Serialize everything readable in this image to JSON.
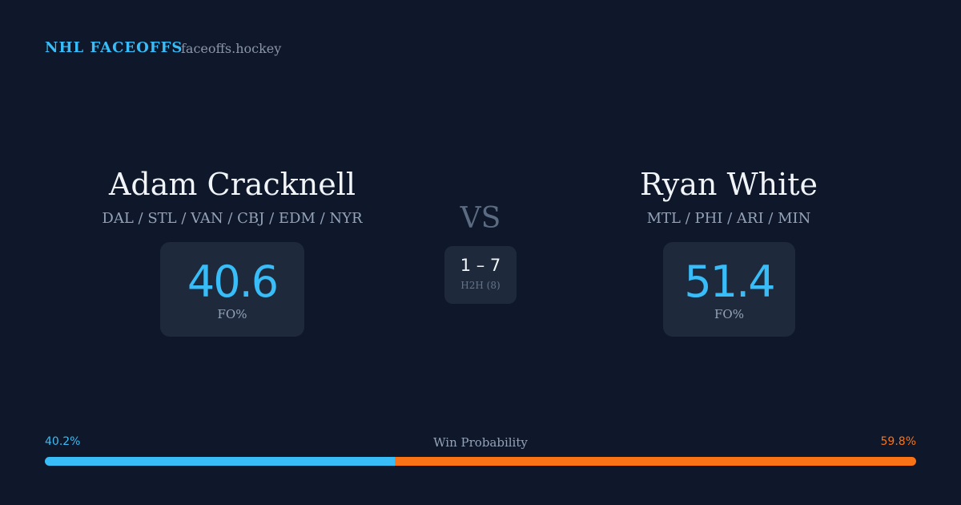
{
  "header": {
    "title": "NHL FACEOFFS",
    "site": "faceoffs.hockey"
  },
  "players": [
    {
      "name": "Adam Cracknell",
      "teams": "DAL / STL / VAN / CBJ / EDM / NYR",
      "fo_pct": 40.6,
      "fo_label": "FO%"
    },
    {
      "name": "Ryan White",
      "teams": "MTL / PHI / ARI / MIN",
      "fo_pct": 51.4,
      "fo_label": "FO%"
    }
  ],
  "versus": {
    "label": "VS",
    "record": "1 – 7",
    "h2h": "H2H (8)"
  },
  "win_probability": {
    "label": "Win Probability",
    "left": {
      "value": 40.2,
      "label": "40.2%",
      "color": "#38bdf8"
    },
    "right": {
      "value": 59.8,
      "label": "59.8%",
      "color": "#f97316"
    }
  }
}
